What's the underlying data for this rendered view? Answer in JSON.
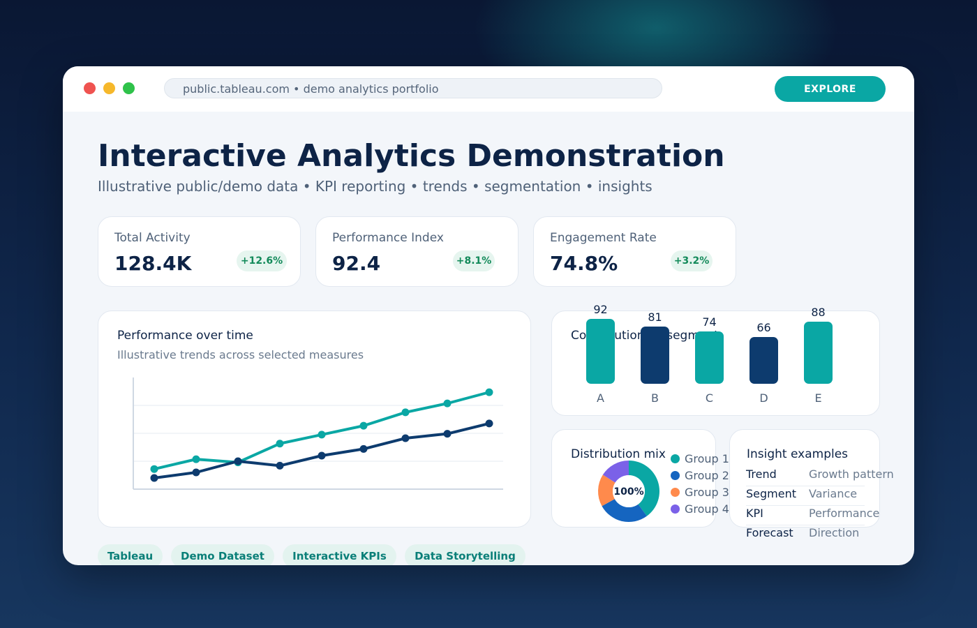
{
  "browser": {
    "url": "public.tableau.com • demo analytics portfolio",
    "action_label": "EXPLORE"
  },
  "header": {
    "title": "Interactive Analytics Demonstration",
    "subtitle": "Illustrative public/demo data • KPI reporting • trends • segmentation • insights"
  },
  "kpis": [
    {
      "label": "Total Activity",
      "value": "128.4K",
      "change": "+12.6%"
    },
    {
      "label": "Performance Index",
      "value": "92.4",
      "change": "+8.1%"
    },
    {
      "label": "Engagement Rate",
      "value": "74.8%",
      "change": "+3.2%"
    }
  ],
  "line_panel": {
    "title": "Performance over time",
    "subtitle": "Illustrative trends across selected measures"
  },
  "bar_panel": {
    "title": "Contribution by segment"
  },
  "donut_panel": {
    "title": "Distribution mix",
    "center_label": "100%"
  },
  "insights": {
    "title": "Insight examples",
    "rows": [
      {
        "key": "Trend",
        "value": "Growth pattern"
      },
      {
        "key": "Segment",
        "value": "Variance"
      },
      {
        "key": "KPI",
        "value": "Performance"
      },
      {
        "key": "Forecast",
        "value": "Direction"
      }
    ]
  },
  "tags": [
    "Tableau",
    "Demo Dataset",
    "Interactive KPIs",
    "Data Storytelling"
  ],
  "colors": {
    "teal": "#0aa7a4",
    "navy": "#0d3b6e",
    "blue": "#1565c0",
    "orange": "#ff8a4c",
    "purple": "#7b61e8"
  },
  "chart_data": [
    {
      "type": "line",
      "title": "Performance over time",
      "x": [
        1,
        2,
        3,
        4,
        5,
        6,
        7,
        8,
        9
      ],
      "series": [
        {
          "values": [
            9,
            13.4,
            12,
            20.4,
            24.4,
            28.4,
            34.4,
            38.4,
            43.4
          ]
        },
        {
          "values": [
            5,
            7.5,
            12.5,
            10.5,
            15,
            18,
            22.8,
            24.8,
            29.4
          ]
        }
      ],
      "ylim": [
        0,
        50
      ],
      "grid": true,
      "xlabel": "",
      "ylabel": ""
    },
    {
      "type": "bar",
      "title": "Contribution by segment",
      "categories": [
        "A",
        "B",
        "C",
        "D",
        "E"
      ],
      "values": [
        92,
        81,
        74,
        66,
        88
      ]
    },
    {
      "type": "pie",
      "title": "Distribution mix",
      "categories": [
        "Group 1",
        "Group 2",
        "Group 3",
        "Group 4"
      ],
      "values": [
        40,
        27,
        17,
        16
      ]
    }
  ]
}
